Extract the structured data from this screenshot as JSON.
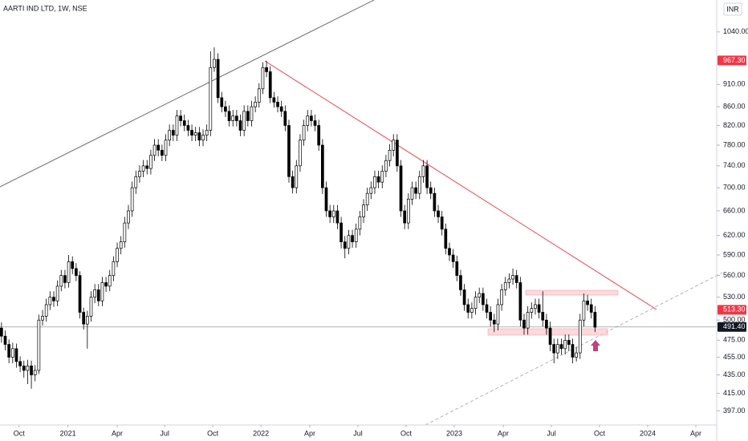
{
  "chart_data": {
    "type": "candlestick",
    "title": "AARTI IND LTD, 1W, NSE",
    "currency": "INR",
    "log_scale": true,
    "up_color": "#ffffff",
    "down_color": "#000000",
    "open": [
      490,
      480,
      470,
      455,
      465,
      450,
      445,
      440,
      445,
      435,
      440,
      500,
      505,
      520,
      530,
      525,
      545,
      560,
      550,
      580,
      570,
      560,
      510,
      495,
      505,
      530,
      540,
      525,
      550,
      545,
      560,
      580,
      600,
      610,
      640,
      660,
      700,
      720,
      730,
      740,
      735,
      760,
      780,
      770,
      760,
      790,
      810,
      800,
      840,
      830,
      820,
      810,
      800,
      805,
      790,
      800,
      810,
      950,
      970,
      880,
      860,
      850,
      830,
      840,
      830,
      810,
      850,
      830,
      860,
      870,
      900,
      950,
      940,
      880,
      870,
      860,
      850,
      820,
      720,
      700,
      740,
      790,
      820,
      840,
      830,
      820,
      780,
      700,
      660,
      650,
      660,
      640,
      610,
      600,
      620,
      610,
      630,
      650,
      670,
      690,
      700,
      720,
      710,
      730,
      750,
      770,
      790,
      740,
      660,
      640,
      680,
      700,
      690,
      720,
      740,
      700,
      690,
      660,
      650,
      630,
      600,
      590,
      580,
      560,
      540,
      520,
      510,
      515,
      530,
      535,
      520,
      510,
      500,
      495,
      520,
      540,
      550,
      555,
      560,
      550,
      500,
      490,
      510,
      515,
      520,
      510,
      500,
      490,
      470,
      460,
      470,
      465,
      475,
      470,
      455,
      460,
      500,
      525,
      520,
      510
    ],
    "high": [
      497,
      487,
      476,
      472,
      471,
      456,
      451,
      452,
      451,
      446,
      507,
      513,
      528,
      538,
      538,
      553,
      568,
      568,
      590,
      588,
      578,
      566,
      516,
      512,
      538,
      548,
      548,
      558,
      558,
      568,
      588,
      609,
      619,
      650,
      670,
      711,
      731,
      741,
      751,
      751,
      771,
      792,
      792,
      781,
      802,
      822,
      822,
      853,
      853,
      843,
      832,
      822,
      817,
      817,
      812,
      822,
      990,
      1000,
      985,
      893,
      873,
      863,
      853,
      853,
      843,
      863,
      863,
      873,
      883,
      913,
      963,
      967,
      953,
      893,
      883,
      873,
      863,
      832,
      731,
      751,
      802,
      832,
      853,
      853,
      843,
      832,
      792,
      711,
      670,
      670,
      670,
      650,
      619,
      629,
      629,
      639,
      660,
      680,
      700,
      711,
      731,
      731,
      741,
      761,
      782,
      802,
      802,
      751,
      670,
      690,
      711,
      711,
      731,
      751,
      751,
      711,
      700,
      670,
      660,
      639,
      609,
      599,
      589,
      568,
      548,
      528,
      523,
      538,
      543,
      543,
      528,
      518,
      508,
      528,
      548,
      558,
      563,
      570,
      568,
      558,
      508,
      518,
      523,
      528,
      528,
      538,
      508,
      498,
      477,
      477,
      477,
      482,
      482,
      477,
      467,
      508,
      535,
      533,
      528,
      518
    ],
    "low": [
      472,
      463,
      448,
      448,
      443,
      438,
      432,
      425,
      420,
      428,
      436,
      493,
      498,
      513,
      517,
      518,
      538,
      542,
      543,
      562,
      552,
      502,
      488,
      465,
      498,
      522,
      518,
      518,
      537,
      538,
      552,
      572,
      591,
      601,
      630,
      650,
      689,
      709,
      719,
      724,
      724,
      749,
      758,
      749,
      749,
      778,
      788,
      788,
      818,
      808,
      798,
      788,
      788,
      778,
      778,
      788,
      798,
      940,
      868,
      848,
      838,
      818,
      818,
      818,
      798,
      798,
      818,
      818,
      848,
      858,
      888,
      927,
      868,
      858,
      848,
      838,
      808,
      709,
      690,
      690,
      729,
      779,
      808,
      818,
      808,
      769,
      689,
      650,
      640,
      640,
      630,
      600,
      585,
      591,
      601,
      601,
      620,
      640,
      660,
      680,
      689,
      699,
      699,
      719,
      739,
      758,
      729,
      650,
      630,
      630,
      670,
      680,
      680,
      709,
      689,
      680,
      650,
      640,
      620,
      591,
      581,
      571,
      552,
      532,
      512,
      502,
      502,
      507,
      522,
      512,
      502,
      492,
      485,
      487,
      512,
      532,
      542,
      547,
      542,
      492,
      482,
      482,
      502,
      507,
      502,
      492,
      482,
      462,
      448,
      453,
      458,
      458,
      462,
      448,
      450,
      453,
      492,
      512,
      502,
      485
    ],
    "close": [
      480,
      470,
      455,
      465,
      450,
      445,
      440,
      445,
      435,
      440,
      500,
      505,
      520,
      530,
      525,
      545,
      560,
      550,
      580,
      570,
      560,
      510,
      495,
      505,
      530,
      540,
      525,
      550,
      545,
      560,
      580,
      600,
      610,
      640,
      660,
      700,
      720,
      730,
      740,
      735,
      760,
      780,
      770,
      760,
      790,
      810,
      800,
      840,
      830,
      820,
      810,
      800,
      805,
      790,
      800,
      810,
      950,
      970,
      880,
      860,
      850,
      830,
      840,
      830,
      810,
      850,
      830,
      860,
      870,
      900,
      950,
      940,
      880,
      870,
      860,
      850,
      820,
      720,
      700,
      740,
      790,
      820,
      840,
      830,
      820,
      780,
      700,
      660,
      650,
      660,
      640,
      610,
      600,
      620,
      610,
      630,
      650,
      670,
      690,
      700,
      720,
      710,
      730,
      750,
      770,
      790,
      740,
      660,
      640,
      680,
      700,
      690,
      720,
      740,
      700,
      690,
      660,
      650,
      630,
      600,
      590,
      580,
      560,
      540,
      520,
      510,
      515,
      530,
      535,
      520,
      510,
      500,
      495,
      520,
      540,
      550,
      555,
      560,
      550,
      500,
      490,
      510,
      515,
      520,
      510,
      500,
      490,
      470,
      460,
      470,
      465,
      475,
      470,
      455,
      460,
      500,
      525,
      520,
      510,
      491
    ],
    "xlim": [
      -0.4,
      191.6
    ],
    "xticks": [
      {
        "value": 4.7,
        "label": "Oct"
      },
      {
        "value": 17.8,
        "label": "2021"
      },
      {
        "value": 31,
        "label": "Apr"
      },
      {
        "value": 43.7,
        "label": "Jul"
      },
      {
        "value": 56.6,
        "label": "Oct"
      },
      {
        "value": 69.5,
        "label": "2022"
      },
      {
        "value": 82.6,
        "label": "Apr"
      },
      {
        "value": 95.5,
        "label": "Jul"
      },
      {
        "value": 108.4,
        "label": "Oct"
      },
      {
        "value": 121.3,
        "label": "2023"
      },
      {
        "value": 134.4,
        "label": "Apr"
      },
      {
        "value": 147.3,
        "label": "Jul"
      },
      {
        "value": 160.2,
        "label": "Oct"
      },
      {
        "value": 173.1,
        "label": "2024"
      },
      {
        "value": 186,
        "label": "Apr"
      }
    ],
    "ylim": [
      383,
      1128
    ],
    "yticks": [
      {
        "value": 1040,
        "label": "1040.00"
      },
      {
        "value": 910,
        "label": "910.00"
      },
      {
        "value": 860,
        "label": "860.00"
      },
      {
        "value": 820,
        "label": "820.00"
      },
      {
        "value": 780,
        "label": "780.00"
      },
      {
        "value": 740,
        "label": "740.00"
      },
      {
        "value": 700,
        "label": "700.00"
      },
      {
        "value": 660,
        "label": "660.00"
      },
      {
        "value": 620,
        "label": "620.00"
      },
      {
        "value": 590,
        "label": "590.00"
      },
      {
        "value": 560,
        "label": "560.00"
      },
      {
        "value": 530,
        "label": "530.00"
      },
      {
        "value": 500,
        "label": "500.00"
      },
      {
        "value": 475,
        "label": "475.00"
      },
      {
        "value": 455,
        "label": "455.00"
      },
      {
        "value": 435,
        "label": "435.00"
      },
      {
        "value": 415,
        "label": "415.00"
      },
      {
        "value": 397,
        "label": "397.00"
      }
    ],
    "price_labels": [
      {
        "value": 967.3,
        "label": "967.30",
        "color": "#f23645"
      },
      {
        "value": 513.3,
        "label": "513.30",
        "color": "#f23645"
      },
      {
        "value": 491.4,
        "label": "491.40",
        "color": "#131722"
      }
    ],
    "last_price": 491.4
  }
}
